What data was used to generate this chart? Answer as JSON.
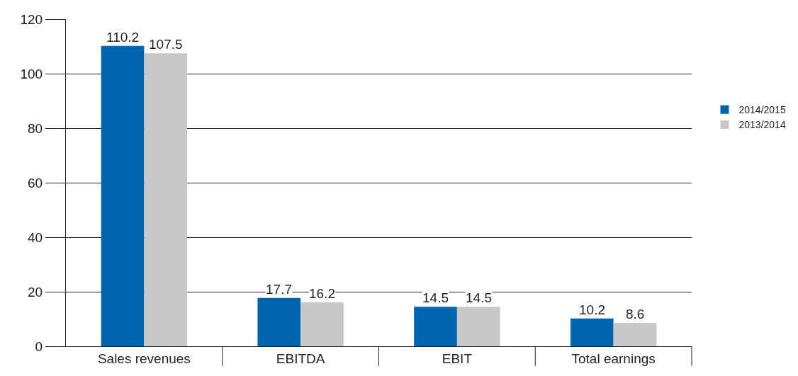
{
  "chart_data": {
    "type": "bar",
    "categories": [
      "Sales revenues",
      "EBITDA",
      "EBIT",
      "Total earnings"
    ],
    "series": [
      {
        "name": "2014/2015",
        "color": "#0064b0",
        "values": [
          110.2,
          17.7,
          14.5,
          10.2
        ]
      },
      {
        "name": "2013/2014",
        "color": "#c8c8c8",
        "values": [
          107.5,
          16.2,
          14.5,
          8.6
        ]
      }
    ],
    "ylim": [
      0,
      120
    ],
    "yticks": [
      0,
      20,
      40,
      60,
      80,
      100,
      120
    ],
    "grid": "y",
    "legend": "right",
    "data_labels": true
  }
}
